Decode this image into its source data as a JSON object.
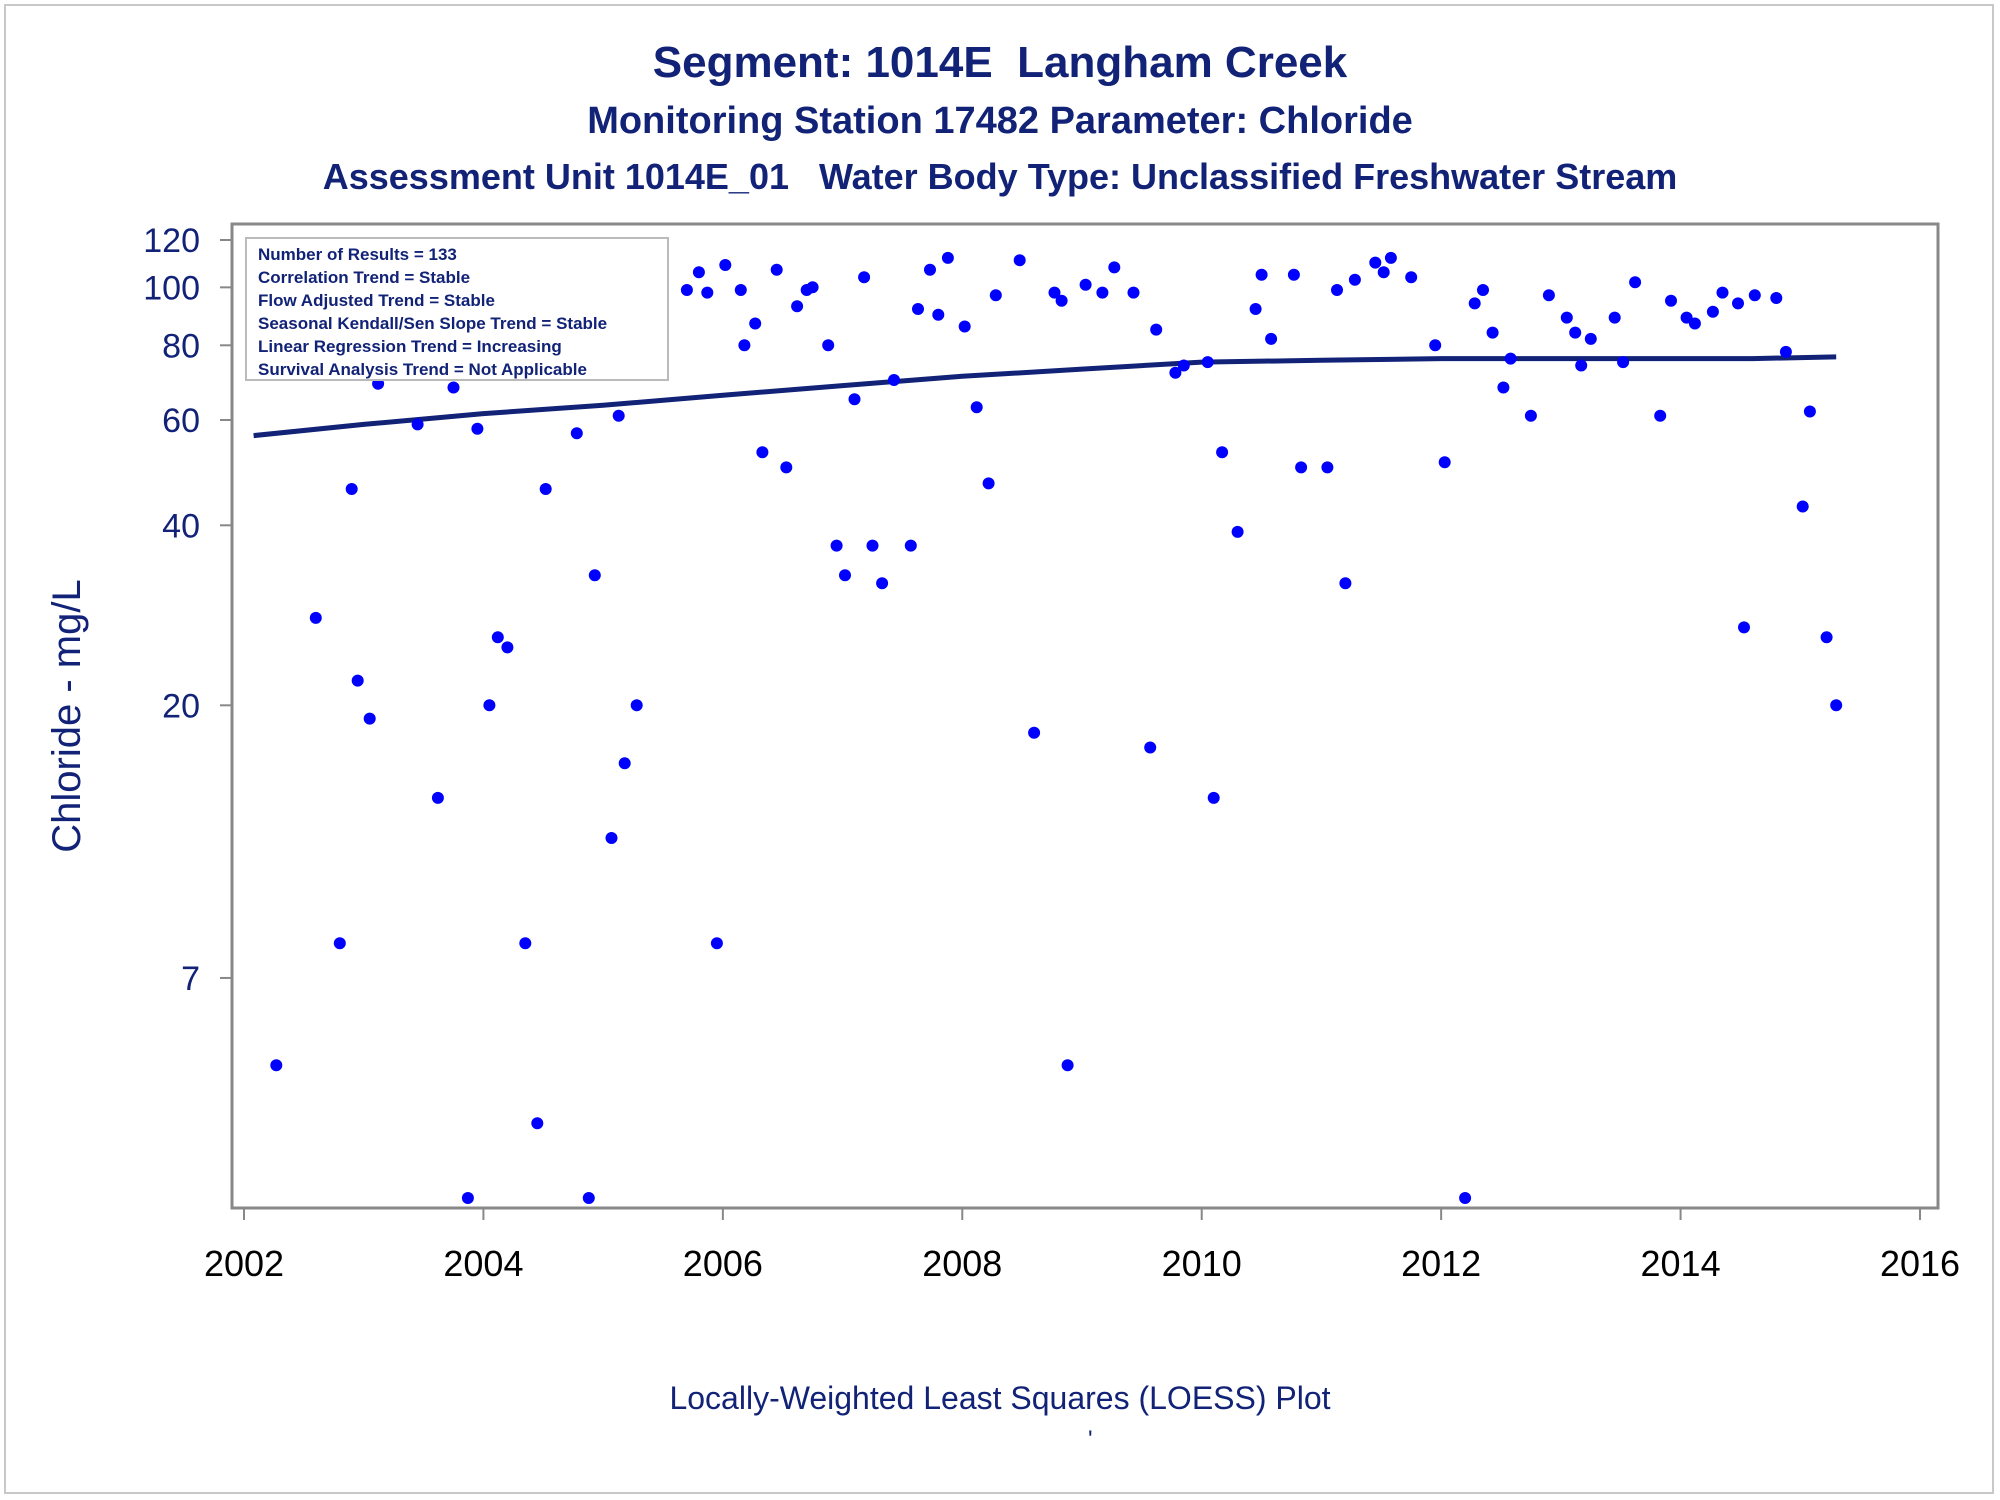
{
  "titles": {
    "line1": "Segment: 1014E  Langham Creek",
    "line2": "Monitoring Station 17482 Parameter: Chloride",
    "line3": "Assessment Unit 1014E_01   Water Body Type: Unclassified Freshwater Stream"
  },
  "footnote": "Locally-Weighted Least Squares (LOESS) Plot",
  "footnote_mark": "'",
  "stats_box": {
    "lines": [
      "Number of Results = 133",
      "Correlation Trend = Stable",
      "Flow Adjusted Trend = Stable",
      "Seasonal Kendall/Sen Slope Trend = Stable",
      "Linear Regression Trend = Increasing",
      "Survival Analysis Trend = Not Applicable"
    ]
  },
  "colors": {
    "title": "#112277",
    "points": "#0000ff",
    "loess": "#112277",
    "axis": "#888888",
    "text": "#112277"
  },
  "chart_data": {
    "type": "scatter",
    "ylabel": "Chloride - mg/L",
    "xlabel": "",
    "y_scale": "log",
    "xlim": [
      2002,
      2016
    ],
    "ylim": [
      3,
      120
    ],
    "x_ticks": [
      2002,
      2004,
      2006,
      2008,
      2010,
      2012,
      2014,
      2016
    ],
    "y_ticks": [
      7,
      20,
      40,
      60,
      80,
      100,
      120
    ],
    "grid": false,
    "points": [
      [
        2002.08,
        91
      ],
      [
        2002.1,
        86
      ],
      [
        2002.2,
        104
      ],
      [
        2002.27,
        5
      ],
      [
        2002.37,
        111
      ],
      [
        2002.45,
        100
      ],
      [
        2002.52,
        92
      ],
      [
        2002.6,
        28
      ],
      [
        2002.7,
        91
      ],
      [
        2002.8,
        8
      ],
      [
        2002.9,
        46
      ],
      [
        2002.95,
        22
      ],
      [
        2003.05,
        19
      ],
      [
        2003.12,
        69
      ],
      [
        2003.25,
        109
      ],
      [
        2003.35,
        116
      ],
      [
        2003.45,
        59
      ],
      [
        2003.55,
        96
      ],
      [
        2003.62,
        14
      ],
      [
        2003.7,
        74
      ],
      [
        2003.75,
        68
      ],
      [
        2003.87,
        3
      ],
      [
        2003.95,
        58
      ],
      [
        2004.05,
        20
      ],
      [
        2004.12,
        26
      ],
      [
        2004.2,
        25
      ],
      [
        2004.28,
        82
      ],
      [
        2004.35,
        8
      ],
      [
        2004.45,
        4
      ],
      [
        2004.52,
        46
      ],
      [
        2004.58,
        105
      ],
      [
        2004.72,
        103
      ],
      [
        2004.78,
        57
      ],
      [
        2004.88,
        3
      ],
      [
        2004.93,
        33
      ],
      [
        2005.07,
        12
      ],
      [
        2005.13,
        61
      ],
      [
        2005.18,
        16
      ],
      [
        2005.28,
        20
      ],
      [
        2005.42,
        115
      ],
      [
        2005.7,
        99
      ],
      [
        2005.8,
        106
      ],
      [
        2005.87,
        98
      ],
      [
        2005.95,
        8
      ],
      [
        2006.02,
        109
      ],
      [
        2006.15,
        99
      ],
      [
        2006.18,
        80
      ],
      [
        2006.27,
        87
      ],
      [
        2006.33,
        53
      ],
      [
        2006.45,
        107
      ],
      [
        2006.53,
        50
      ],
      [
        2006.62,
        93
      ],
      [
        2006.7,
        99
      ],
      [
        2006.75,
        100
      ],
      [
        2006.88,
        80
      ],
      [
        2006.95,
        37
      ],
      [
        2007.02,
        33
      ],
      [
        2007.1,
        65
      ],
      [
        2007.18,
        104
      ],
      [
        2007.25,
        37
      ],
      [
        2007.33,
        32
      ],
      [
        2007.43,
        70
      ],
      [
        2007.57,
        37
      ],
      [
        2007.63,
        92
      ],
      [
        2007.73,
        107
      ],
      [
        2007.8,
        90
      ],
      [
        2007.88,
        112
      ],
      [
        2008.02,
        86
      ],
      [
        2008.12,
        63
      ],
      [
        2008.22,
        47
      ],
      [
        2008.28,
        97
      ],
      [
        2008.48,
        111
      ],
      [
        2008.6,
        18
      ],
      [
        2008.77,
        98
      ],
      [
        2008.83,
        95
      ],
      [
        2008.88,
        5
      ],
      [
        2009.03,
        101
      ],
      [
        2009.17,
        98
      ],
      [
        2009.27,
        108
      ],
      [
        2009.43,
        98
      ],
      [
        2009.57,
        17
      ],
      [
        2009.62,
        85
      ],
      [
        2009.78,
        72
      ],
      [
        2009.85,
        74
      ],
      [
        2010.05,
        75
      ],
      [
        2010.1,
        14
      ],
      [
        2010.17,
        53
      ],
      [
        2010.3,
        39
      ],
      [
        2010.45,
        92
      ],
      [
        2010.5,
        105
      ],
      [
        2010.58,
        82
      ],
      [
        2010.77,
        105
      ],
      [
        2010.83,
        50
      ],
      [
        2011.05,
        50
      ],
      [
        2011.13,
        99
      ],
      [
        2011.2,
        32
      ],
      [
        2011.28,
        103
      ],
      [
        2011.45,
        110
      ],
      [
        2011.52,
        106
      ],
      [
        2011.58,
        112
      ],
      [
        2011.75,
        104
      ],
      [
        2011.95,
        80
      ],
      [
        2012.03,
        51
      ],
      [
        2012.2,
        3
      ],
      [
        2012.28,
        94
      ],
      [
        2012.35,
        99
      ],
      [
        2012.43,
        84
      ],
      [
        2012.52,
        68
      ],
      [
        2012.58,
        76
      ],
      [
        2012.75,
        61
      ],
      [
        2012.9,
        97
      ],
      [
        2013.05,
        89
      ],
      [
        2013.12,
        84
      ],
      [
        2013.17,
        74
      ],
      [
        2013.25,
        82
      ],
      [
        2013.45,
        89
      ],
      [
        2013.52,
        75
      ],
      [
        2013.62,
        102
      ],
      [
        2013.83,
        61
      ],
      [
        2013.92,
        95
      ],
      [
        2014.05,
        89
      ],
      [
        2014.12,
        87
      ],
      [
        2014.27,
        91
      ],
      [
        2014.35,
        98
      ],
      [
        2014.48,
        94
      ],
      [
        2014.53,
        27
      ],
      [
        2014.62,
        97
      ],
      [
        2014.8,
        96
      ],
      [
        2014.88,
        78
      ],
      [
        2015.02,
        43
      ],
      [
        2015.08,
        62
      ],
      [
        2015.22,
        26
      ],
      [
        2015.3,
        20
      ]
    ],
    "loess": [
      [
        2002.08,
        56.5
      ],
      [
        2003.0,
        59
      ],
      [
        2004.0,
        61.5
      ],
      [
        2005.0,
        63.5
      ],
      [
        2006.0,
        66
      ],
      [
        2007.0,
        68.5
      ],
      [
        2008.0,
        71
      ],
      [
        2009.0,
        73
      ],
      [
        2010.0,
        75
      ],
      [
        2011.0,
        75.5
      ],
      [
        2012.0,
        76
      ],
      [
        2013.0,
        76
      ],
      [
        2014.0,
        76
      ],
      [
        2014.6,
        76
      ],
      [
        2015.3,
        76.5
      ]
    ]
  }
}
